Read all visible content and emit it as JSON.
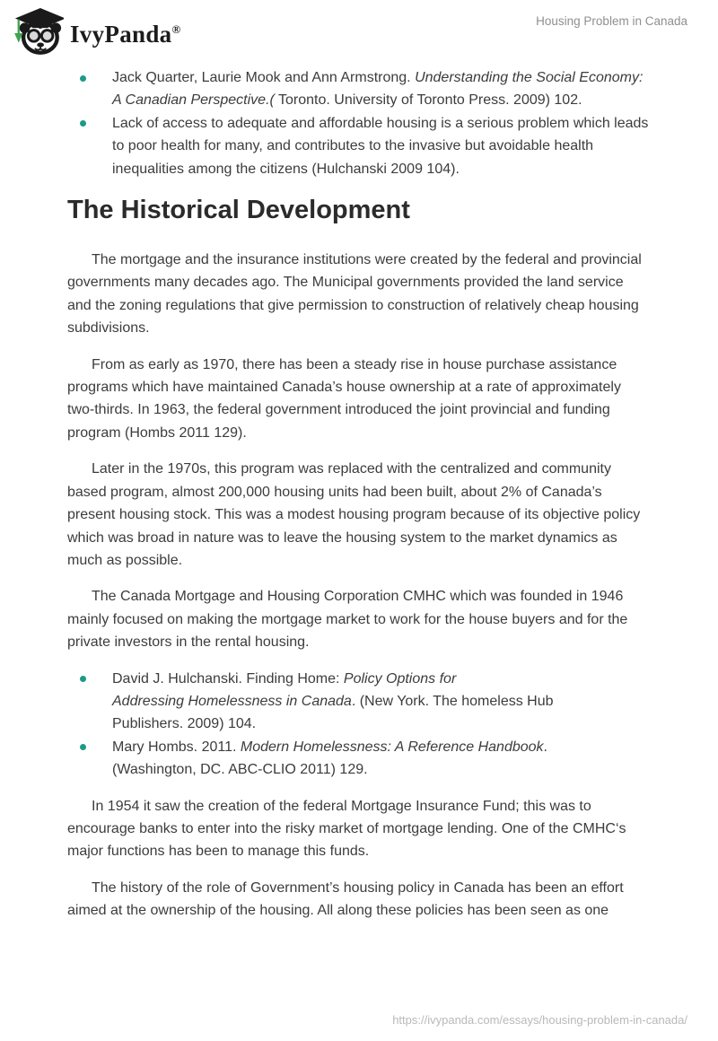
{
  "header": {
    "brand": "IvyPanda",
    "registered": "®",
    "title": "Housing Problem in Canada"
  },
  "footer": {
    "url": "https://ivypanda.com/essays/housing-problem-in-canada/"
  },
  "colors": {
    "bullet": "#1d9a87",
    "body_text": "#3c3c3c",
    "heading_text": "#2b2b2b",
    "header_title": "#8f8f8f",
    "footer_url": "#b9b9b9",
    "logo_black": "#1a1a1a",
    "logo_green": "#3fa34d"
  },
  "icons": {
    "logo": "ivypanda-panda-graduate-logo"
  },
  "content": [
    {
      "type": "list",
      "items": [
        {
          "runs": [
            {
              "t": "Jack Quarter, Laurie Mook and Ann Armstrong. "
            },
            {
              "t": "Understanding the Social Economy: A Canadian Perspective.(",
              "i": true
            },
            {
              "t": " Toronto. University of Toronto Press. 2009) 102."
            }
          ]
        },
        {
          "runs": [
            {
              "t": "Lack of access to adequate and affordable housing is a serious problem which leads to poor health for many, and contributes to the invasive but avoidable health inequalities among the citizens (Hulchanski 2009 104)."
            }
          ]
        }
      ]
    },
    {
      "type": "heading",
      "text": "The Historical Development"
    },
    {
      "type": "p",
      "runs": [
        {
          "t": "The mortgage and the insurance institutions were created by the federal and provincial governments many decades ago. The Municipal governments provided the land service and the zoning regulations that give permission to construction of relatively cheap housing subdivisions."
        }
      ]
    },
    {
      "type": "p",
      "runs": [
        {
          "t": "From as early as 1970, there has been a steady rise in house purchase assistance programs which have maintained Canada’s house ownership at a rate of approximately two-thirds. In 1963, the federal government introduced the joint provincial and funding program (Hombs 2011 129)."
        }
      ]
    },
    {
      "type": "p",
      "runs": [
        {
          "t": "Later in the 1970s, this program was replaced with the centralized and community based program, almost 200,000 housing units had been built, about 2% of Canada’s present housing stock. This was a modest housing program because of its objective policy which was broad in nature was to leave the housing system to the market dynamics as much as possible."
        }
      ]
    },
    {
      "type": "p",
      "runs": [
        {
          "t": "The Canada Mortgage and Housing Corporation CMHC which was founded in 1946 mainly focused on making the mortgage market to work for the house buyers and for the private investors in the rental housing."
        }
      ]
    },
    {
      "type": "list",
      "items": [
        {
          "runs": [
            {
              "t": "David J. Hulchanski. Finding Home: "
            },
            {
              "t": "Policy Options for\nAddressing Homelessness in Canada",
              "i": true
            },
            {
              "t": ". (New York. The homeless Hub\nPublishers. 2009) 104."
            }
          ]
        },
        {
          "runs": [
            {
              "t": "Mary Hombs. 2011. "
            },
            {
              "t": "Modern Homelessness: A Reference Handbook",
              "i": true
            },
            {
              "t": ".\n(Washington, DC. ABC-CLIO 2011) 129."
            }
          ]
        }
      ]
    },
    {
      "type": "p",
      "runs": [
        {
          "t": "In 1954 it saw the creation of the federal Mortgage Insurance Fund; this was to encourage banks to enter into the risky market of mortgage lending. One of the CMHC‘s major functions has been to manage this funds."
        }
      ]
    },
    {
      "type": "p",
      "runs": [
        {
          "t": "The history of the role of Government’s housing policy in Canada has been an effort aimed at the ownership of the housing. All along these policies has been seen as one"
        }
      ]
    }
  ]
}
